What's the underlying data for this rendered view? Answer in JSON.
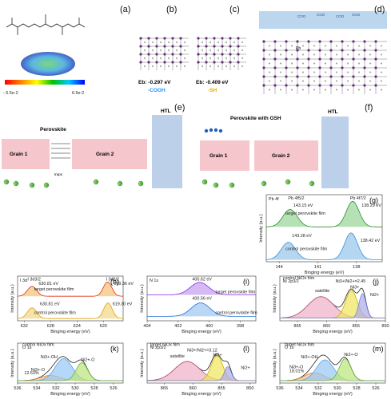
{
  "panels": {
    "a": {
      "letter": "(a)",
      "scale_min": "- 6.5e-2",
      "scale_max": "6.5e-2",
      "colors": [
        "#ff0000",
        "#ff8000",
        "#ffff00",
        "#00c000",
        "#00c8ff",
        "#0000ff"
      ]
    },
    "b": {
      "letter": "(b)",
      "eb_label": "Eb: -0.297 eV",
      "group": "-COOH",
      "group_color": "#1e90ff"
    },
    "c": {
      "letter": "(c)",
      "eb_label": "Eb: -0.409 eV",
      "group": "-SH",
      "group_color": "#e6a800"
    },
    "d": {
      "letter": "(d)",
      "coo": [
        "COO",
        "COO",
        "COO",
        "COO"
      ],
      "pb": "Pb"
    },
    "e": {
      "letter": "(e)",
      "title": "Perovskite",
      "htl": "HTL",
      "grain1": "Grain 1",
      "grain2": "Grain 2",
      "traps": "traps"
    },
    "f": {
      "letter": "(f)",
      "title": "Perovskite with GSH",
      "htl": "HTL",
      "grain1": "Grain 1",
      "grain2": "Grain 2"
    },
    "g": {
      "letter": "(g)",
      "element": "Pb 4f",
      "ylabel": "Intensity (a.u.)",
      "xlabel": "Binging energy (eV)"
    },
    "h": {
      "letter": "(h)",
      "element": "I 3d",
      "ylabel": "Intensity (a.u.)",
      "xlabel": "Binging energy (eV)"
    },
    "i": {
      "letter": "(i)",
      "element": "N 1s",
      "ylabel": "Intensity (a.u.)",
      "xlabel": "Binging energy (eV)"
    },
    "j": {
      "letter": "(j)",
      "ylabel": "Intensity (a.u.)",
      "xlabel": "Binging energy (eV)"
    },
    "k": {
      "letter": "(k)",
      "ylabel": "Intensity (a.u.)",
      "xlabel": "Binging energy (eV)"
    },
    "l": {
      "letter": "(l)",
      "ylabel": "Intensity (a.u.)",
      "xlabel": "Binging energy (eV)"
    },
    "m": {
      "letter": "(m)",
      "ylabel": "Intensity (a.u.)",
      "xlabel": "Binging energy (eV)"
    }
  },
  "chart_data": [
    {
      "id": "g",
      "type": "line",
      "xlim": [
        145,
        136
      ],
      "ylim": [
        0,
        1
      ],
      "ticks": [
        144,
        141,
        138
      ],
      "texts": [
        {
          "text": "Pb 4f5/2",
          "color": "#222222",
          "x": 143.3,
          "y": 0.93
        },
        {
          "text": "Pb 4f7/2",
          "color": "#222222",
          "x": 138.5,
          "y": 0.93
        },
        {
          "text": "143.15 eV",
          "color": "#2e8b2e",
          "x": 142.9,
          "y": 0.82
        },
        {
          "text": "138.29 eV",
          "color": "#3b8fd9",
          "x": 137.6,
          "y": 0.82
        },
        {
          "text": "target perovskite film",
          "color": "#222222",
          "x": 143.5,
          "y": 0.7
        },
        {
          "text": "143.28 eV",
          "color": "#2e8b2e",
          "x": 143.0,
          "y": 0.37
        },
        {
          "text": "138.42 eV",
          "color": "#3b8fd9",
          "x": 137.7,
          "y": 0.3
        },
        {
          "text": "control perovskite film",
          "color": "#222222",
          "x": 143.5,
          "y": 0.17
        }
      ],
      "series": [
        {
          "color": "#2e8b2e",
          "fill": "rgba(120,200,120,0.55)",
          "offset": 0.52,
          "peaks": [
            [
              143.15,
              0.26,
              0.55
            ],
            [
              138.29,
              0.38,
              0.5
            ]
          ]
        },
        {
          "color": "#3b8fd9",
          "fill": "rgba(120,180,230,0.55)",
          "offset": 0.03,
          "peaks": [
            [
              143.28,
              0.26,
              0.55
            ],
            [
              138.42,
              0.4,
              0.5
            ]
          ]
        }
      ]
    },
    {
      "id": "h",
      "type": "line",
      "xlim": [
        633,
        617
      ],
      "ylim": [
        0,
        1
      ],
      "ticks": [
        632,
        628,
        624,
        620
      ],
      "texts": [
        {
          "text": "I 3d3/2",
          "color": "#222222",
          "x": 631.5,
          "y": 0.9
        },
        {
          "text": "I 3d5/2",
          "color": "#222222",
          "x": 619.6,
          "y": 0.9
        },
        {
          "text": "630.81 eV",
          "color": "#e0301e",
          "x": 629.8,
          "y": 0.8
        },
        {
          "text": "619.36 eV",
          "color": "#e0a000",
          "x": 618.4,
          "y": 0.8
        },
        {
          "text": "target perovskite film",
          "color": "#222222",
          "x": 630.5,
          "y": 0.68
        },
        {
          "text": "630.81 eV",
          "color": "#e0301e",
          "x": 629.6,
          "y": 0.35
        },
        {
          "text": "619.30 eV",
          "color": "#e0a000",
          "x": 618.6,
          "y": 0.35
        },
        {
          "text": "control perovskite film",
          "color": "#222222",
          "x": 630.5,
          "y": 0.15
        }
      ],
      "series": [
        {
          "color": "#e0301e",
          "fill": "rgba(240,170,60,0.5)",
          "offset": 0.55,
          "peaks": [
            [
              630.81,
              0.22,
              0.7
            ],
            [
              619.36,
              0.32,
              0.65
            ]
          ]
        },
        {
          "color": "#e0a000",
          "fill": "rgba(240,200,80,0.5)",
          "offset": 0.05,
          "peaks": [
            [
              630.81,
              0.24,
              0.7
            ],
            [
              619.3,
              0.35,
              0.65
            ]
          ]
        }
      ]
    },
    {
      "id": "i",
      "type": "line",
      "xlim": [
        404,
        397
      ],
      "ylim": [
        0,
        1
      ],
      "ticks": [
        404,
        402,
        400,
        398
      ],
      "texts": [
        {
          "text": "400.62 eV",
          "color": "#8a2be2",
          "x": 401.1,
          "y": 0.9
        },
        {
          "text": "target perovskite film",
          "color": "#222222",
          "x": 399.6,
          "y": 0.62
        },
        {
          "text": "400.56 eV",
          "color": "#1e6fd9",
          "x": 401.1,
          "y": 0.47
        },
        {
          "text": "control perovskite film",
          "color": "#222222",
          "x": 399.6,
          "y": 0.15
        }
      ],
      "series": [
        {
          "color": "#8a2be2",
          "fill": "rgba(185,140,235,0.6)",
          "offset": 0.58,
          "peaks": [
            [
              400.62,
              0.28,
              0.6
            ]
          ]
        },
        {
          "color": "#1e6fd9",
          "fill": "rgba(140,190,240,0.6)",
          "offset": 0.1,
          "peaks": [
            [
              400.56,
              0.3,
              0.6
            ]
          ]
        }
      ]
    },
    {
      "id": "j",
      "type": "line",
      "xlim": [
        868,
        850
      ],
      "ylim": [
        0,
        1
      ],
      "ticks": [
        865,
        860,
        855,
        850
      ],
      "texts": [
        {
          "text": "control NiOx film",
          "color": "#222222",
          "x": 867.5,
          "y": 0.93
        },
        {
          "text": "Ni 2p3/2",
          "color": "#222222",
          "x": 867.5,
          "y": 0.86
        },
        {
          "text": "Ni3+/Ni2+=2.45",
          "color": "#222222",
          "x": 858.5,
          "y": 0.86
        },
        {
          "text": "satellite",
          "color": "#222222",
          "x": 862.0,
          "y": 0.64
        },
        {
          "text": "Ni3+",
          "color": "#222222",
          "x": 856.0,
          "y": 0.72
        },
        {
          "text": "Ni2+",
          "color": "#222222",
          "x": 852.6,
          "y": 0.55
        }
      ],
      "series": [
        {
          "color": "#222222",
          "fill": "none",
          "offset": 0.06,
          "peaks": [
            [
              861.0,
              0.48,
              2.2
            ],
            [
              855.8,
              0.62,
              1.0
            ],
            [
              853.9,
              0.55,
              0.6
            ]
          ]
        },
        {
          "color": "#c06080",
          "fill": "rgba(235,160,190,0.6)",
          "offset": 0.06,
          "peaks": [
            [
              861.0,
              0.48,
              2.2
            ]
          ]
        },
        {
          "color": "#c8b000",
          "fill": "rgba(240,230,90,0.7)",
          "offset": 0.06,
          "peaks": [
            [
              855.8,
              0.62,
              1.0
            ]
          ]
        },
        {
          "color": "#8080d0",
          "fill": "rgba(170,170,240,0.7)",
          "offset": 0.06,
          "peaks": [
            [
              853.9,
              0.55,
              0.6
            ]
          ]
        }
      ]
    },
    {
      "id": "k",
      "type": "line",
      "xlim": [
        536,
        525
      ],
      "ylim": [
        0,
        1
      ],
      "ticks": [
        536,
        534,
        532,
        530,
        528,
        526
      ],
      "texts": [
        {
          "text": "control NiOx film",
          "color": "#222222",
          "x": 535.5,
          "y": 0.93
        },
        {
          "text": "O 1s",
          "color": "#222222",
          "x": 535.5,
          "y": 0.86
        },
        {
          "text": "Ni3+-OH",
          "color": "#1e90ff",
          "x": 533.6,
          "y": 0.62
        },
        {
          "text": "Ni2+-O",
          "color": "#4caf50",
          "x": 529.4,
          "y": 0.55
        },
        {
          "text": "Ni3+-O",
          "color": "#e0701e",
          "x": 534.6,
          "y": 0.3
        },
        {
          "text": "12.63%",
          "color": "#222222",
          "x": 535.3,
          "y": 0.22
        }
      ],
      "series": [
        {
          "color": "#222222",
          "fill": "none",
          "offset": 0.06,
          "peaks": [
            [
              531.2,
              0.55,
              0.9
            ],
            [
              529.3,
              0.45,
              0.6
            ],
            [
              532.6,
              0.13,
              1.0
            ]
          ]
        },
        {
          "color": "#e0801e",
          "fill": "rgba(245,190,150,0.7)",
          "offset": 0.06,
          "peaks": [
            [
              532.6,
              0.13,
              1.0
            ]
          ]
        },
        {
          "color": "#60a0e0",
          "fill": "rgba(150,200,245,0.7)",
          "offset": 0.06,
          "peaks": [
            [
              531.2,
              0.55,
              0.9
            ]
          ]
        },
        {
          "color": "#70b040",
          "fill": "rgba(185,230,120,0.7)",
          "offset": 0.06,
          "peaks": [
            [
              529.3,
              0.45,
              0.6
            ]
          ]
        }
      ]
    },
    {
      "id": "l",
      "type": "line",
      "xlim": [
        868,
        849
      ],
      "ylim": [
        0,
        1
      ],
      "ticks": [
        865,
        860,
        855,
        850
      ],
      "texts": [
        {
          "text": "target NiOx film",
          "color": "#222222",
          "x": 867.5,
          "y": 0.93
        },
        {
          "text": "Ni 2p3/2",
          "color": "#222222",
          "x": 867.5,
          "y": 0.86
        },
        {
          "text": "Ni3+/Ni2+=3.12",
          "color": "#e0301e",
          "x": 861.0,
          "y": 0.79
        },
        {
          "text": "satellite",
          "color": "#222222",
          "x": 864.0,
          "y": 0.64
        },
        {
          "text": "Ni3+",
          "color": "#222222",
          "x": 856.5,
          "y": 0.67
        },
        {
          "text": "Ni2+",
          "color": "#222222",
          "x": 851.6,
          "y": 0.35
        }
      ],
      "series": [
        {
          "color": "#222222",
          "fill": "none",
          "offset": 0.06,
          "peaks": [
            [
              861.0,
              0.48,
              2.2
            ],
            [
              855.8,
              0.64,
              1.0
            ],
            [
              853.9,
              0.35,
              0.6
            ]
          ]
        },
        {
          "color": "#c06080",
          "fill": "rgba(235,160,190,0.6)",
          "offset": 0.06,
          "peaks": [
            [
              861.0,
              0.48,
              2.2
            ]
          ]
        },
        {
          "color": "#c8b000",
          "fill": "rgba(240,230,90,0.7)",
          "offset": 0.06,
          "peaks": [
            [
              855.8,
              0.64,
              1.0
            ]
          ]
        },
        {
          "color": "#8080d0",
          "fill": "rgba(170,170,240,0.7)",
          "offset": 0.06,
          "peaks": [
            [
              853.9,
              0.35,
              0.6
            ]
          ]
        }
      ]
    },
    {
      "id": "m",
      "type": "line",
      "xlim": [
        536,
        525
      ],
      "ylim": [
        0,
        1
      ],
      "ticks": [
        536,
        534,
        532,
        530,
        528,
        526
      ],
      "texts": [
        {
          "text": "target NiOx film",
          "color": "#222222",
          "x": 535.5,
          "y": 0.93
        },
        {
          "text": "O 1s",
          "color": "#222222",
          "x": 535.5,
          "y": 0.86
        },
        {
          "text": "Ni3+-OH",
          "color": "#1e90ff",
          "x": 533.8,
          "y": 0.62
        },
        {
          "text": "Ni2+-O",
          "color": "#4caf50",
          "x": 529.3,
          "y": 0.68
        },
        {
          "text": "Ni3+-O",
          "color": "#e0701e",
          "x": 535.0,
          "y": 0.37
        },
        {
          "text": "18.01%",
          "color": "#e0301e",
          "x": 535.0,
          "y": 0.27
        }
      ],
      "series": [
        {
          "color": "#222222",
          "fill": "none",
          "offset": 0.06,
          "peaks": [
            [
              531.3,
              0.52,
              0.9
            ],
            [
              529.2,
              0.55,
              0.6
            ],
            [
              532.4,
              0.2,
              1.0
            ]
          ]
        },
        {
          "color": "#e0801e",
          "fill": "rgba(245,190,150,0.7)",
          "offset": 0.06,
          "peaks": [
            [
              532.4,
              0.2,
              1.0
            ]
          ]
        },
        {
          "color": "#60a0e0",
          "fill": "rgba(150,200,245,0.7)",
          "offset": 0.06,
          "peaks": [
            [
              531.3,
              0.52,
              0.9
            ]
          ]
        },
        {
          "color": "#70b040",
          "fill": "rgba(185,230,120,0.7)",
          "offset": 0.06,
          "peaks": [
            [
              529.2,
              0.55,
              0.6
            ]
          ]
        }
      ]
    }
  ]
}
